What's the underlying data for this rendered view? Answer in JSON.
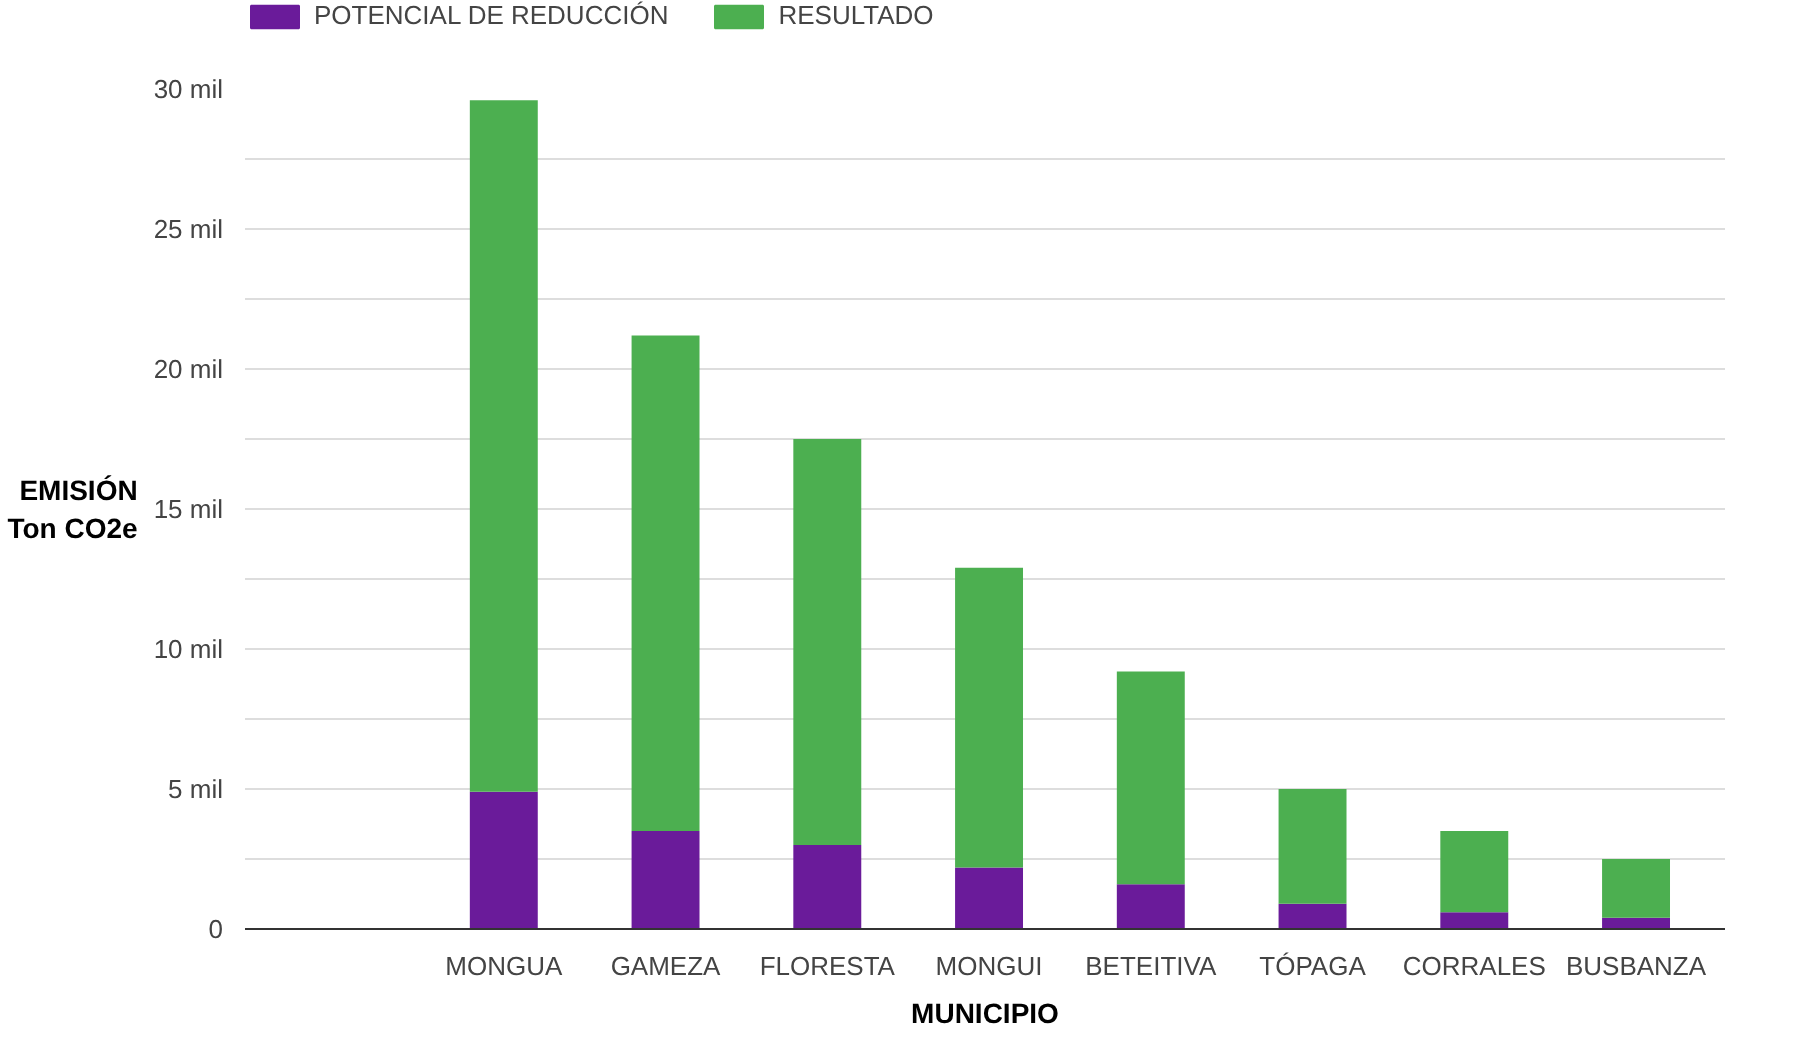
{
  "chart_data": {
    "type": "bar",
    "stacked": true,
    "xlabel": "MUNICIPIO",
    "ylabel": "EMISIÓN\nTon CO2e",
    "categories": [
      "MONGUA",
      "GAMEZA",
      "FLORESTA",
      "MONGUI",
      "BETEITIVA",
      "TÓPAGA",
      "CORRALES",
      "BUSBANZA"
    ],
    "series": [
      {
        "name": "POTENCIAL DE REDUCCIÓN",
        "color": "#6a1b9a",
        "values": [
          4.9,
          3.5,
          3.0,
          2.2,
          1.6,
          0.9,
          0.6,
          0.4
        ]
      },
      {
        "name": "RESULTADO",
        "color": "#4caf50",
        "values": [
          24.7,
          17.7,
          14.5,
          10.7,
          7.6,
          4.1,
          2.9,
          2.1
        ]
      }
    ],
    "ylim": [
      0,
      30
    ],
    "yticks": [
      {
        "value": 0,
        "label": "0"
      },
      {
        "value": 2.5,
        "label": null
      },
      {
        "value": 5,
        "label": "5 mil"
      },
      {
        "value": 7.5,
        "label": null
      },
      {
        "value": 10,
        "label": "10 mil"
      },
      {
        "value": 12.5,
        "label": null
      },
      {
        "value": 15,
        "label": "15 mil"
      },
      {
        "value": 17.5,
        "label": null
      },
      {
        "value": 20,
        "label": "20 mil"
      },
      {
        "value": 22.5,
        "label": null
      },
      {
        "value": 25,
        "label": "25 mil"
      },
      {
        "value": 27.5,
        "label": null
      },
      {
        "value": 30,
        "label": "30 mil"
      }
    ],
    "grid": "y",
    "legend": "top left"
  }
}
